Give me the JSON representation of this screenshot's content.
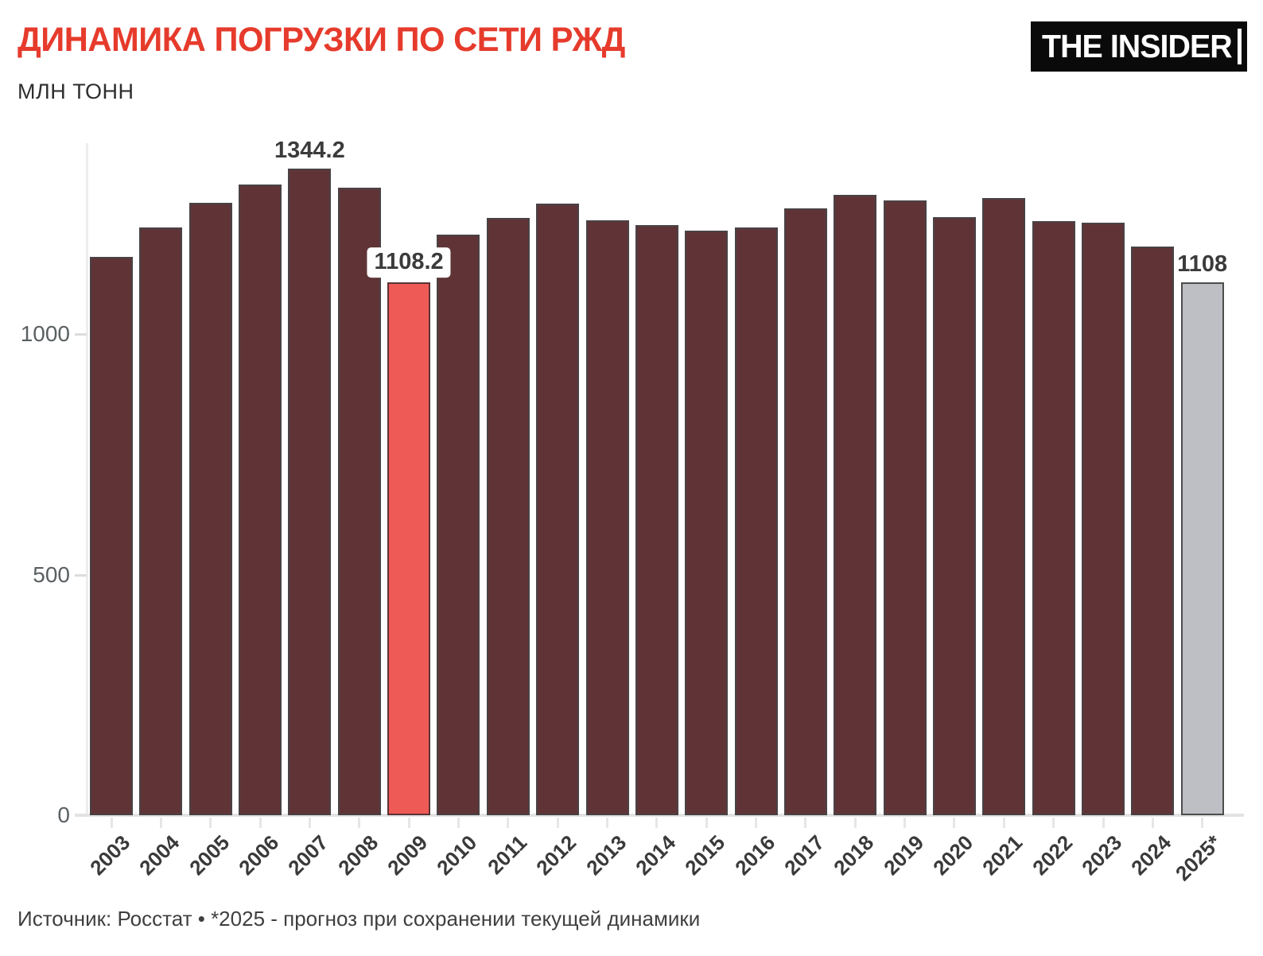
{
  "header": {
    "title": "ДИНАМИКА ПОГРУЗКИ ПО СЕТИ РЖД",
    "subtitle": "МЛН ТОНН",
    "logo_text": "THE INSIDER"
  },
  "footer": {
    "source": "Источник: Росстат • *2025 - прогноз при сохранении текущей динамики"
  },
  "colors": {
    "title_red": "#e63b2c",
    "bar_fill": "#603437",
    "bar_border": "#494245",
    "highlight_fill": "#ee5a56",
    "forecast_fill": "#bdbfc4",
    "axis_line": "#e3e3e3",
    "logo_bg": "#0a0a0a"
  },
  "chart_data": {
    "type": "bar",
    "title": "ДИНАМИКА ПОГРУЗКИ ПО СЕТИ РЖД",
    "ylabel": "МЛН ТОНН",
    "xlabel": "",
    "grid": false,
    "legend": false,
    "ylim": [
      0,
      1400
    ],
    "yticks": [
      0,
      500,
      1000
    ],
    "categories": [
      "2003",
      "2004",
      "2005",
      "2006",
      "2007",
      "2008",
      "2009",
      "2010",
      "2011",
      "2012",
      "2013",
      "2014",
      "2015",
      "2016",
      "2017",
      "2018",
      "2019",
      "2020",
      "2021",
      "2022",
      "2023",
      "2024",
      "2025*"
    ],
    "values": [
      1160.8,
      1221.2,
      1273.2,
      1311.3,
      1344.2,
      1303.7,
      1108.2,
      1205.8,
      1241.5,
      1271.9,
      1236.8,
      1226.9,
      1214.5,
      1222.3,
      1261.3,
      1289.6,
      1278.1,
      1243.6,
      1282.5,
      1234.3,
      1232.2,
      1181.4,
      1108
    ],
    "highlight_category": "2009",
    "forecast_category": "2025*",
    "annotations": [
      {
        "category": "2007",
        "label": "1344.2",
        "boxed": false
      },
      {
        "category": "2009",
        "label": "1108.2",
        "boxed": true
      },
      {
        "category": "2025*",
        "label": "1108",
        "boxed": false
      }
    ]
  }
}
